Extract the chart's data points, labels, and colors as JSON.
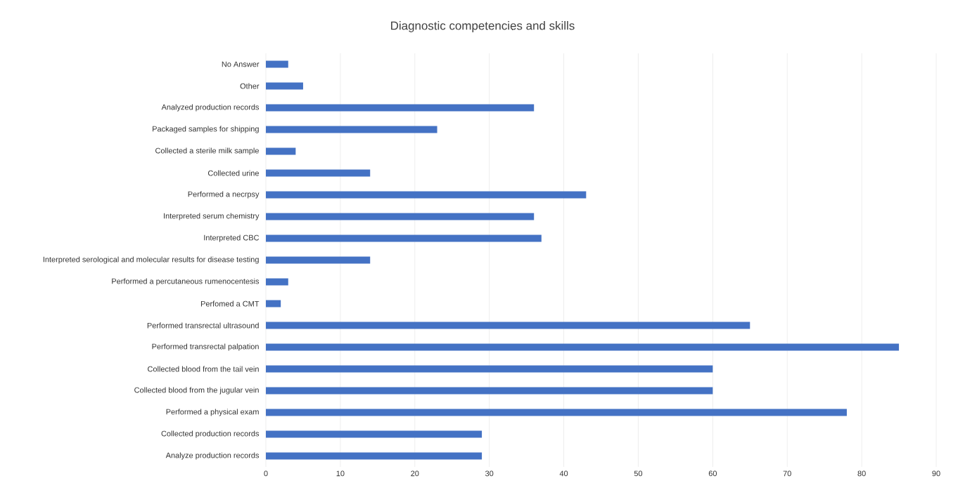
{
  "chart_data": {
    "type": "bar",
    "orientation": "horizontal",
    "title": "Diagnostic competencies and skills",
    "categories": [
      "No Answer",
      "Other",
      "Analyzed production records",
      "Packaged samples for shipping",
      "Collected a sterile milk sample",
      "Collected urine",
      "Performed a necrpsy",
      "Interpreted serum chemistry",
      "Interpreted CBC",
      "Interpreted serological and molecular results for disease testing",
      "Performed a percutaneous rumenocentesis",
      "Perfomed a CMT",
      "Performed transrectal ultrasound",
      "Performed transrectal palpation",
      "Collected blood from the tail vein",
      "Collected blood from the jugular vein",
      "Performed a physical exam",
      "Collected production records",
      "Analyze production records"
    ],
    "values": [
      3,
      5,
      36,
      23,
      4,
      14,
      43,
      36,
      37,
      14,
      3,
      2,
      65,
      85,
      60,
      60,
      78,
      29,
      29
    ],
    "color": "#4472c4",
    "xlim": [
      0,
      90
    ],
    "xticks": [
      0,
      10,
      20,
      30,
      40,
      50,
      60,
      70,
      80,
      90
    ],
    "grid": "x"
  }
}
